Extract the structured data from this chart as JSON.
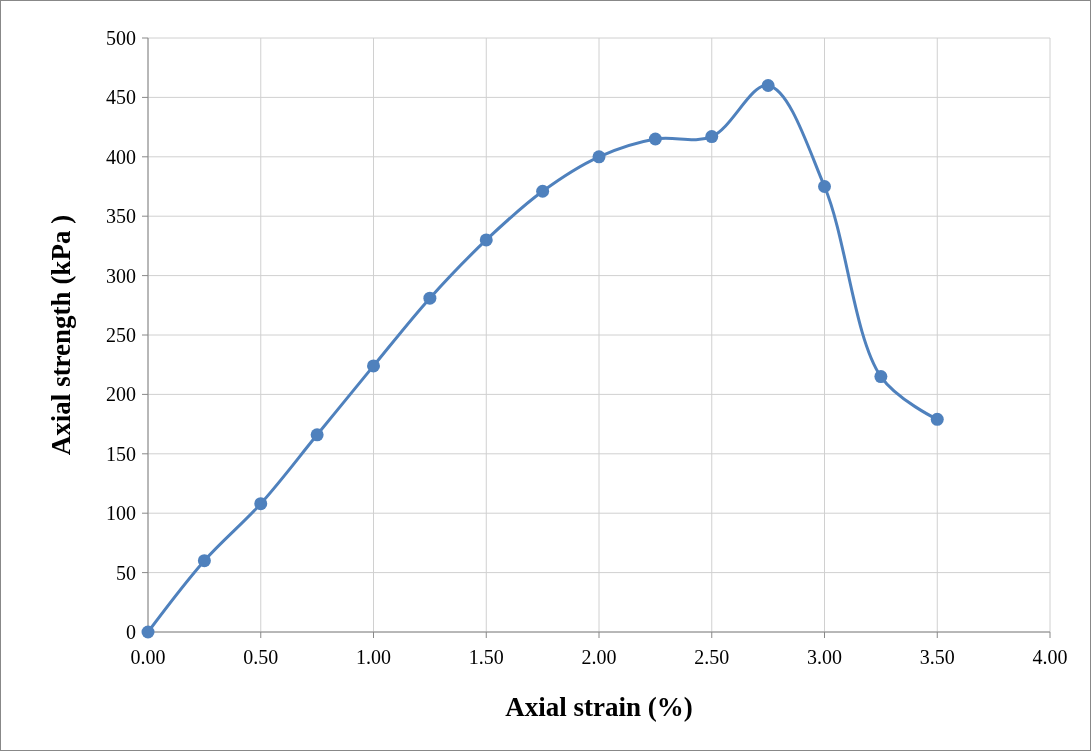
{
  "chart_data": {
    "type": "line",
    "xlabel": "Axial strain (%)",
    "ylabel": "Axial strength (kPa )",
    "x": [
      0,
      0.25,
      0.5,
      0.75,
      1.0,
      1.25,
      1.5,
      1.75,
      2.0,
      2.25,
      2.5,
      2.75,
      3.0,
      3.25,
      3.5
    ],
    "series": [
      {
        "color": "#4f81bd",
        "values": [
          0,
          60,
          108,
          166,
          224,
          281,
          330,
          371,
          400,
          415,
          417,
          460,
          375,
          215,
          179
        ]
      }
    ],
    "xlim": [
      0,
      4
    ],
    "xticks": [
      {
        "value": 0,
        "label": "0.00"
      },
      {
        "value": 0.5,
        "label": "0.50"
      },
      {
        "value": 1,
        "label": "1.00"
      },
      {
        "value": 1.5,
        "label": "1.50"
      },
      {
        "value": 2,
        "label": "2.00"
      },
      {
        "value": 2.5,
        "label": "2.50"
      },
      {
        "value": 3,
        "label": "3.00"
      },
      {
        "value": 3.5,
        "label": "3.50"
      },
      {
        "value": 4,
        "label": "4.00"
      }
    ],
    "ylim": [
      0,
      500
    ],
    "yticks": [
      0,
      50,
      100,
      150,
      200,
      250,
      300,
      350,
      400,
      450,
      500
    ],
    "grid": true,
    "marker": "circle",
    "line_style": "solid"
  }
}
